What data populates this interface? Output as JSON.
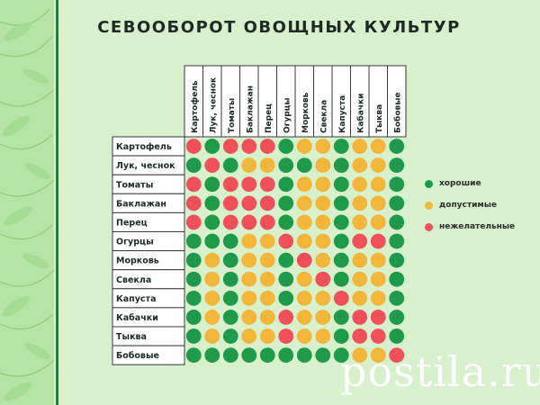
{
  "title": "СЕВООБОРОТ ОВОЩНЫХ КУЛЬТУР",
  "columns": [
    "Картофель",
    "Лук, чеснок",
    "Томаты",
    "Баклажан",
    "Перец",
    "Огурцы",
    "Морковь",
    "Свекла",
    "Капуста",
    "Кабачки",
    "Тыква",
    "Бобовые"
  ],
  "rows": [
    "Картофель",
    "Лук, чеснок",
    "Томаты",
    "Баклажан",
    "Перец",
    "Огурцы",
    "Морковь",
    "Свекла",
    "Капуста",
    "Кабачки",
    "Тыква",
    "Бобовые"
  ],
  "matrix": [
    [
      "bad",
      "good",
      "bad",
      "bad",
      "bad",
      "good",
      "ok",
      "ok",
      "good",
      "ok",
      "ok",
      "good"
    ],
    [
      "good",
      "bad",
      "good",
      "ok",
      "ok",
      "good",
      "good",
      "ok",
      "good",
      "ok",
      "ok",
      "good"
    ],
    [
      "bad",
      "good",
      "bad",
      "bad",
      "bad",
      "good",
      "ok",
      "ok",
      "good",
      "ok",
      "ok",
      "good"
    ],
    [
      "bad",
      "good",
      "bad",
      "bad",
      "bad",
      "good",
      "ok",
      "ok",
      "good",
      "ok",
      "ok",
      "good"
    ],
    [
      "bad",
      "good",
      "bad",
      "bad",
      "bad",
      "good",
      "ok",
      "ok",
      "good",
      "ok",
      "ok",
      "good"
    ],
    [
      "good",
      "good",
      "good",
      "ok",
      "ok",
      "bad",
      "ok",
      "ok",
      "good",
      "bad",
      "bad",
      "good"
    ],
    [
      "good",
      "ok",
      "good",
      "ok",
      "ok",
      "good",
      "bad",
      "ok",
      "good",
      "ok",
      "ok",
      "good"
    ],
    [
      "good",
      "ok",
      "good",
      "ok",
      "ok",
      "good",
      "ok",
      "bad",
      "good",
      "ok",
      "ok",
      "good"
    ],
    [
      "good",
      "ok",
      "good",
      "ok",
      "ok",
      "good",
      "ok",
      "ok",
      "bad",
      "ok",
      "ok",
      "good"
    ],
    [
      "good",
      "ok",
      "good",
      "ok",
      "ok",
      "bad",
      "ok",
      "ok",
      "good",
      "bad",
      "bad",
      "good"
    ],
    [
      "good",
      "ok",
      "good",
      "ok",
      "ok",
      "bad",
      "ok",
      "ok",
      "good",
      "bad",
      "bad",
      "good"
    ],
    [
      "good",
      "good",
      "good",
      "good",
      "good",
      "good",
      "good",
      "good",
      "good",
      "ok",
      "ok",
      "bad"
    ]
  ],
  "legend": [
    {
      "key": "good",
      "label": "хорошие"
    },
    {
      "key": "ok",
      "label": "допустимые"
    },
    {
      "key": "bad",
      "label": "нежелательные"
    }
  ],
  "colors": {
    "good": "#1f9a4a",
    "ok": "#f1b63a",
    "bad": "#f0505a",
    "line": "#3a3a3a",
    "text": "#1e2a25"
  },
  "watermark": "postila.ru"
}
